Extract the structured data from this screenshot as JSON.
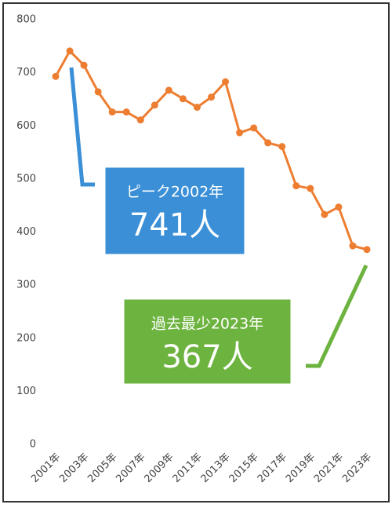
{
  "chart_data": {
    "type": "line",
    "categories": [
      "2001年",
      null,
      "2003年",
      null,
      "2005年",
      null,
      "2007年",
      null,
      "2009年",
      null,
      "2011年",
      null,
      "2013年",
      null,
      "2015年",
      null,
      "2017年",
      null,
      "2019年",
      null,
      "2021年",
      null,
      "2023年"
    ],
    "series": [
      {
        "color": "#ed7d31",
        "values": [
          693,
          741,
          714,
          664,
          626,
          626,
          611,
          639,
          667,
          651,
          635,
          654,
          683,
          587,
          596,
          568,
          561,
          487,
          482,
          433,
          447,
          374,
          367
        ]
      }
    ],
    "ylim": [
      0,
      800
    ],
    "yticks": [
      0,
      100,
      200,
      300,
      400,
      500,
      600,
      700,
      800
    ],
    "grid": false,
    "annotations": [
      {
        "title": "ピーク2002年",
        "text": "741人",
        "color": "#3a8fd6"
      },
      {
        "title": "過去最少2023年",
        "text": "367人",
        "color": "#6db33f"
      }
    ]
  }
}
